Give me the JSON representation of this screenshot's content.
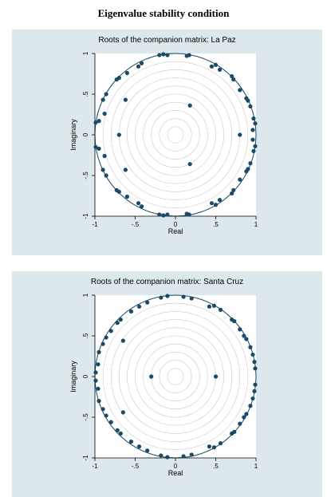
{
  "title": "Eigenvalue stability condition",
  "colors": {
    "panel_background": "#dce8ec",
    "plot_background": "#ffffff",
    "point": "#1a4a66",
    "unit_circle": "#1a4a66",
    "grid_circles": "#c8c8c8"
  },
  "chart_data": [
    {
      "type": "scatter",
      "title": "Roots of the companion matrix: La Paz",
      "xlabel": "Real",
      "ylabel": "Imaginary",
      "xlim": [
        -1,
        1
      ],
      "ylim": [
        -1,
        1
      ],
      "x_ticks": [
        "-1",
        "-.5",
        "0",
        ".5",
        "1"
      ],
      "y_ticks": [
        "1",
        ".5",
        "0",
        "-.5",
        "-1"
      ],
      "unit_circle": true,
      "grid": "concentric circles",
      "points": [
        [
          0.99,
          0.14
        ],
        [
          0.99,
          -0.14
        ],
        [
          0.97,
          0.2
        ],
        [
          0.97,
          -0.2
        ],
        [
          0.96,
          0.06
        ],
        [
          0.96,
          -0.06
        ],
        [
          0.93,
          0.35
        ],
        [
          0.93,
          -0.35
        ],
        [
          0.88,
          0.45
        ],
        [
          0.88,
          -0.45
        ],
        [
          0.9,
          0.42
        ],
        [
          0.9,
          -0.42
        ],
        [
          0.8,
          0.55
        ],
        [
          0.8,
          -0.55
        ],
        [
          0.72,
          0.68
        ],
        [
          0.72,
          -0.68
        ],
        [
          0.7,
          0.72
        ],
        [
          0.7,
          -0.72
        ],
        [
          0.55,
          0.8
        ],
        [
          0.55,
          -0.8
        ],
        [
          0.5,
          0.86
        ],
        [
          0.5,
          -0.86
        ],
        [
          0.45,
          0.84
        ],
        [
          0.45,
          -0.84
        ],
        [
          0.17,
          0.98
        ],
        [
          0.17,
          -0.98
        ],
        [
          0.14,
          0.97
        ],
        [
          0.14,
          -0.97
        ],
        [
          -0.1,
          0.98
        ],
        [
          -0.1,
          -0.98
        ],
        [
          -0.15,
          0.99
        ],
        [
          -0.15,
          -0.99
        ],
        [
          -0.2,
          0.98
        ],
        [
          -0.2,
          -0.98
        ],
        [
          -0.42,
          0.88
        ],
        [
          -0.42,
          -0.88
        ],
        [
          -0.46,
          0.84
        ],
        [
          -0.46,
          -0.84
        ],
        [
          -0.6,
          0.76
        ],
        [
          -0.6,
          -0.76
        ],
        [
          -0.7,
          0.7
        ],
        [
          -0.7,
          -0.7
        ],
        [
          -0.73,
          0.68
        ],
        [
          -0.73,
          -0.68
        ],
        [
          -0.86,
          0.5
        ],
        [
          -0.86,
          -0.5
        ],
        [
          -0.9,
          0.43
        ],
        [
          -0.9,
          -0.43
        ],
        [
          -0.88,
          0.26
        ],
        [
          -0.88,
          -0.26
        ],
        [
          -0.95,
          0.17
        ],
        [
          -0.95,
          -0.17
        ],
        [
          -0.99,
          0.15
        ],
        [
          -0.99,
          -0.15
        ],
        [
          -0.62,
          0.43
        ],
        [
          -0.62,
          -0.43
        ],
        [
          -0.7,
          0
        ],
        [
          0.18,
          0.36
        ],
        [
          0.18,
          -0.36
        ],
        [
          0.8,
          0
        ]
      ]
    },
    {
      "type": "scatter",
      "title": "Roots of the companion matrix: Santa Cruz",
      "xlabel": "Real",
      "ylabel": "Imaginary",
      "xlim": [
        -1,
        1
      ],
      "ylim": [
        -1,
        1
      ],
      "x_ticks": [
        "-1",
        "-.5",
        "0",
        ".5",
        "1"
      ],
      "y_ticks": [
        "1",
        ".5",
        "0",
        "-.5",
        "-1"
      ],
      "unit_circle": true,
      "grid": "concentric circles",
      "points": [
        [
          0.99,
          0.1
        ],
        [
          0.99,
          -0.1
        ],
        [
          0.98,
          0.18
        ],
        [
          0.98,
          -0.18
        ],
        [
          0.96,
          0.27
        ],
        [
          0.96,
          -0.27
        ],
        [
          0.93,
          0.36
        ],
        [
          0.93,
          -0.36
        ],
        [
          0.88,
          0.46
        ],
        [
          0.88,
          -0.46
        ],
        [
          0.85,
          0.5
        ],
        [
          0.85,
          -0.5
        ],
        [
          0.8,
          0.58
        ],
        [
          0.8,
          -0.58
        ],
        [
          0.73,
          0.68
        ],
        [
          0.73,
          -0.68
        ],
        [
          0.7,
          0.7
        ],
        [
          0.7,
          -0.7
        ],
        [
          0.56,
          0.82
        ],
        [
          0.56,
          -0.82
        ],
        [
          0.48,
          0.87
        ],
        [
          0.48,
          -0.87
        ],
        [
          0.42,
          0.86
        ],
        [
          0.42,
          -0.86
        ],
        [
          0.2,
          0.96
        ],
        [
          0.2,
          -0.96
        ],
        [
          0.1,
          0.98
        ],
        [
          0.1,
          -0.98
        ],
        [
          -0.1,
          0.99
        ],
        [
          -0.1,
          -0.99
        ],
        [
          -0.18,
          0.97
        ],
        [
          -0.18,
          -0.97
        ],
        [
          -0.35,
          0.91
        ],
        [
          -0.35,
          -0.91
        ],
        [
          -0.45,
          0.86
        ],
        [
          -0.45,
          -0.86
        ],
        [
          -0.55,
          0.8
        ],
        [
          -0.55,
          -0.8
        ],
        [
          -0.68,
          0.7
        ],
        [
          -0.68,
          -0.7
        ],
        [
          -0.72,
          0.66
        ],
        [
          -0.72,
          -0.66
        ],
        [
          -0.8,
          0.56
        ],
        [
          -0.8,
          -0.56
        ],
        [
          -0.86,
          0.48
        ],
        [
          -0.86,
          -0.48
        ],
        [
          -0.9,
          0.4
        ],
        [
          -0.9,
          -0.4
        ],
        [
          -0.95,
          0.3
        ],
        [
          -0.95,
          -0.3
        ],
        [
          -0.96,
          0.15
        ],
        [
          -0.96,
          -0.15
        ],
        [
          -0.99,
          0.05
        ],
        [
          -0.99,
          -0.05
        ],
        [
          -0.65,
          0.44
        ],
        [
          -0.65,
          -0.44
        ],
        [
          -0.3,
          0
        ],
        [
          0.5,
          0
        ]
      ]
    }
  ]
}
